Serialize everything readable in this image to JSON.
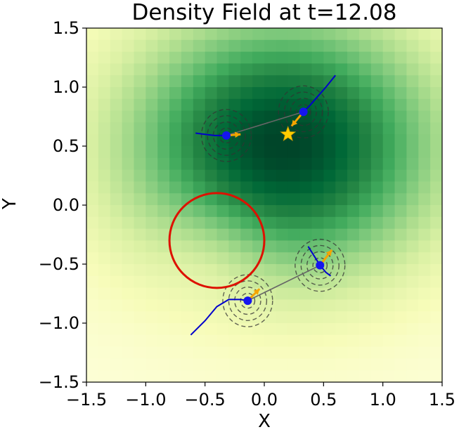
{
  "chart_data": {
    "type": "heatmap",
    "title": "Density Field at t=12.08",
    "xlabel": "X",
    "ylabel": "Y",
    "xlim": [
      -1.5,
      1.5
    ],
    "ylim": [
      -1.5,
      1.5
    ],
    "xticks": [
      -1.5,
      -1.0,
      -0.5,
      0.0,
      0.5,
      1.0,
      1.5
    ],
    "yticks": [
      -1.5,
      -1.0,
      -0.5,
      0.0,
      0.5,
      1.0,
      1.5
    ],
    "xtick_labels": [
      "−1.5",
      "−1.0",
      "−0.5",
      "0.0",
      "0.5",
      "1.0",
      "1.5"
    ],
    "ytick_labels": [
      "−1.5",
      "−1.0",
      "−0.5",
      "0.0",
      "0.5",
      "1.0",
      "1.5"
    ],
    "grid": false,
    "colormap": "YlGn",
    "grid_resolution": 30,
    "density_peak": {
      "x": 0.15,
      "y": 0.5
    },
    "colormap_colors": [
      "#ffffe5",
      "#f7fcb9",
      "#d9f0a3",
      "#addd8e",
      "#78c679",
      "#41ab5d",
      "#238443",
      "#006837",
      "#004529"
    ],
    "obstacle": {
      "center": [
        -0.4,
        -0.3
      ],
      "radius": 0.4,
      "color": "#dd1100"
    },
    "target": {
      "x": 0.2,
      "y": 0.6,
      "color": "#ffcc00"
    },
    "agents": [
      {
        "position": [
          -0.32,
          0.59
        ],
        "trajectory": [
          [
            -0.58,
            0.61
          ],
          [
            -0.5,
            0.6
          ],
          [
            -0.42,
            0.59
          ],
          [
            -0.36,
            0.59
          ],
          [
            -0.32,
            0.59
          ]
        ],
        "velocity_arrow": [
          0.12,
          0.01
        ]
      },
      {
        "position": [
          0.33,
          0.79
        ],
        "trajectory": [
          [
            0.6,
            1.1
          ],
          [
            0.52,
            1.0
          ],
          [
            0.45,
            0.92
          ],
          [
            0.38,
            0.84
          ],
          [
            0.33,
            0.79
          ]
        ],
        "velocity_arrow": [
          -0.1,
          -0.12
        ]
      },
      {
        "position": [
          0.47,
          -0.51
        ],
        "trajectory": [
          [
            0.37,
            -0.35
          ],
          [
            0.42,
            -0.43
          ],
          [
            0.47,
            -0.51
          ],
          [
            0.52,
            -0.57
          ],
          [
            0.56,
            -0.6
          ]
        ],
        "velocity_arrow": [
          0.1,
          0.13
        ]
      },
      {
        "position": [
          -0.14,
          -0.81
        ],
        "trajectory": [
          [
            -0.62,
            -1.1
          ],
          [
            -0.5,
            -0.98
          ],
          [
            -0.4,
            -0.86
          ],
          [
            -0.3,
            -0.8
          ],
          [
            -0.2,
            -0.8
          ],
          [
            -0.14,
            -0.81
          ]
        ],
        "velocity_arrow": [
          0.1,
          0.1
        ]
      }
    ],
    "connections": [
      {
        "from": 0,
        "to": 1
      },
      {
        "from": 2,
        "to": 3
      }
    ],
    "trajectory_color": "#0000cc",
    "agent_color": "#1515ee",
    "arrow_color": "#f5a400",
    "connection_color": "#666666",
    "contour_color": "#333333",
    "contour_radii": [
      0.06,
      0.11,
      0.16,
      0.21
    ]
  }
}
